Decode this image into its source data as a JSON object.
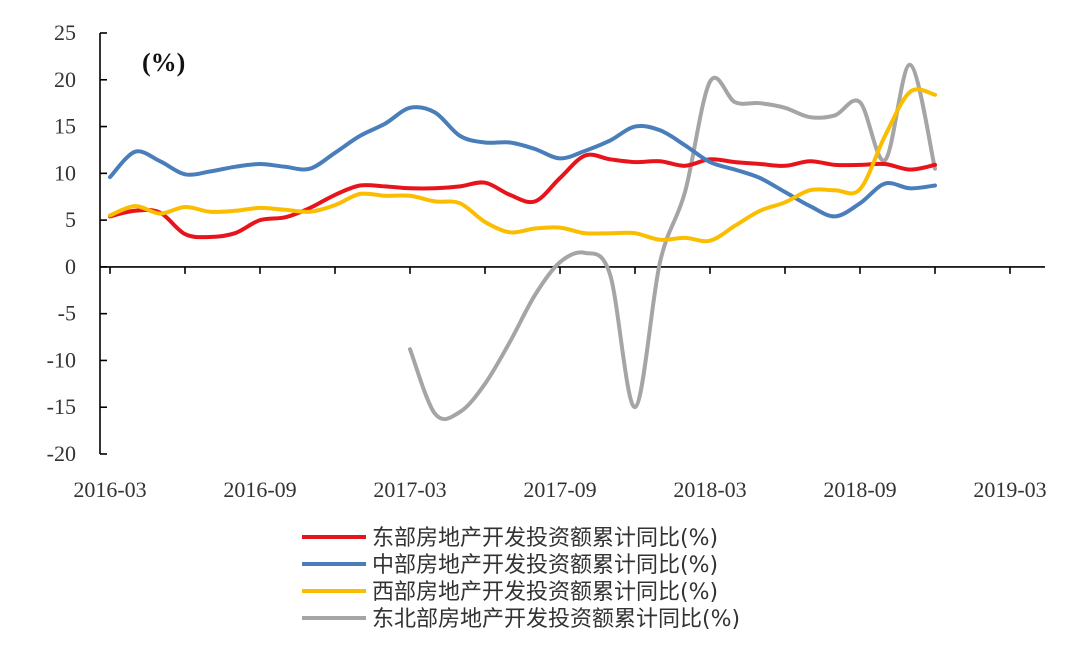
{
  "chart_data": {
    "type": "line",
    "unit_label": "(%)",
    "ylim": [
      -20,
      25
    ],
    "yticks": [
      25,
      20,
      15,
      10,
      5,
      0,
      -5,
      -10,
      -15,
      -20
    ],
    "x_tick_labels": [
      "2016-03",
      "2016-09",
      "2017-03",
      "2017-09",
      "2018-03",
      "2018-09",
      "2019-03"
    ],
    "x": [
      "2016-03",
      "2016-04",
      "2016-05",
      "2016-06",
      "2016-07",
      "2016-08",
      "2016-09",
      "2016-10",
      "2016-11",
      "2016-12",
      "2017-01",
      "2017-02",
      "2017-03",
      "2017-04",
      "2017-05",
      "2017-06",
      "2017-07",
      "2017-08",
      "2017-09",
      "2017-10",
      "2017-11",
      "2017-12",
      "2018-01",
      "2018-02",
      "2018-03",
      "2018-04",
      "2018-05",
      "2018-06",
      "2018-07",
      "2018-08",
      "2018-09",
      "2018-10",
      "2018-11",
      "2018-12",
      "2019-01",
      "2019-02",
      "2019-03",
      "2019-04"
    ],
    "grid": false,
    "legend_position": "bottom",
    "series": [
      {
        "name": "东部房地产开发投资额累计同比(%)",
        "color": "#e8141b",
        "values": [
          5.4,
          6.0,
          5.8,
          3.5,
          3.2,
          3.6,
          5.0,
          5.3,
          6.3,
          7.7,
          8.7,
          8.6,
          8.4,
          8.4,
          8.6,
          9.0,
          7.7,
          7.0,
          9.5,
          11.9,
          11.5,
          11.2,
          11.3,
          10.8,
          11.5,
          11.2,
          11.0,
          10.8,
          11.3,
          10.9,
          10.9,
          11.0,
          10.4,
          10.9,
          null,
          null,
          null,
          null
        ]
      },
      {
        "name": "中部房地产开发投资额累计同比(%)",
        "color": "#4a7ebb",
        "values": [
          9.6,
          12.3,
          11.3,
          9.9,
          10.2,
          10.7,
          11.0,
          10.7,
          10.5,
          12.2,
          14.0,
          15.3,
          17.0,
          16.5,
          14.0,
          13.3,
          13.3,
          12.6,
          11.6,
          12.4,
          13.5,
          15.0,
          14.6,
          13.0,
          11.2,
          10.4,
          9.5,
          8.0,
          6.5,
          5.4,
          6.8,
          8.9,
          8.4,
          8.7,
          null,
          null,
          null,
          null
        ]
      },
      {
        "name": "西部房地产开发投资额累计同比(%)",
        "color": "#fbbd00",
        "values": [
          5.5,
          6.5,
          5.7,
          6.4,
          5.9,
          6.0,
          6.3,
          6.1,
          5.9,
          6.6,
          7.8,
          7.6,
          7.6,
          7.0,
          6.8,
          4.8,
          3.7,
          4.1,
          4.2,
          3.6,
          3.6,
          3.6,
          2.9,
          3.1,
          2.8,
          4.4,
          6.0,
          6.9,
          8.2,
          8.2,
          8.3,
          14.0,
          18.7,
          18.4,
          null,
          null,
          null,
          null
        ]
      },
      {
        "name": "东北部房地产开发投资额累计同比(%)",
        "color": "#a5a5a5",
        "values": [
          null,
          null,
          null,
          null,
          null,
          null,
          null,
          null,
          null,
          null,
          null,
          null,
          -8.8,
          -15.7,
          -15.5,
          -12.5,
          -8.0,
          -3.0,
          0.5,
          1.5,
          -0.8,
          -15.0,
          0.5,
          8.0,
          19.8,
          17.6,
          17.5,
          17.0,
          16.0,
          16.2,
          17.6,
          11.4,
          21.6,
          10.5,
          null,
          null,
          null,
          null
        ]
      }
    ]
  }
}
